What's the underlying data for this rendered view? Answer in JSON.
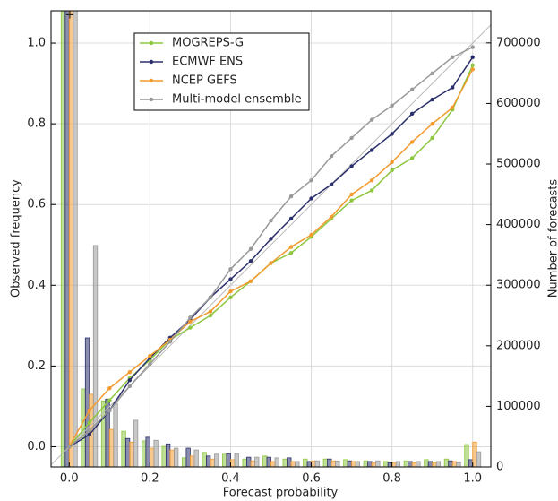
{
  "chart_data": {
    "type": "reliability",
    "xlabel": "Forecast probability",
    "ylabel": "Observed frequency",
    "y2label": "Number of forecasts",
    "annotation": "+",
    "x": [
      0,
      0.05,
      0.1,
      0.15,
      0.2,
      0.25,
      0.3,
      0.35,
      0.4,
      0.45,
      0.5,
      0.55,
      0.6,
      0.65,
      0.7,
      0.75,
      0.8,
      0.85,
      0.9,
      0.95,
      1.0
    ],
    "series": [
      {
        "name": "MOGREPS-G",
        "color": "#8dc63f",
        "values": [
          0,
          0.06,
          0.115,
          0.17,
          0.215,
          0.265,
          0.295,
          0.325,
          0.37,
          0.41,
          0.455,
          0.48,
          0.52,
          0.565,
          0.61,
          0.635,
          0.685,
          0.715,
          0.765,
          0.835,
          0.945
        ],
        "counts": [
          800000,
          128700,
          109000,
          59000,
          43000,
          34000,
          15000,
          24000,
          21000,
          13000,
          18000,
          13000,
          13000,
          13000,
          12000,
          10000,
          9000,
          10000,
          12000,
          13000,
          37000
        ]
      },
      {
        "name": "ECMWF ENS",
        "color": "#2b2f6b",
        "values": [
          0,
          0.03,
          0.09,
          0.165,
          0.22,
          0.27,
          0.315,
          0.37,
          0.415,
          0.46,
          0.515,
          0.565,
          0.615,
          0.65,
          0.695,
          0.735,
          0.775,
          0.825,
          0.86,
          0.89,
          0.965
        ],
        "counts": [
          780000,
          213000,
          112000,
          47000,
          49000,
          38000,
          31000,
          18000,
          22000,
          16000,
          16000,
          15000,
          9000,
          13000,
          10000,
          9000,
          7000,
          9000,
          9000,
          10000,
          12000
        ]
      },
      {
        "name": "NCEP GEFS",
        "color": "#f39a2f",
        "values": [
          0,
          0.09,
          0.145,
          0.185,
          0.225,
          0.265,
          0.31,
          0.335,
          0.385,
          0.41,
          0.455,
          0.495,
          0.525,
          0.57,
          0.625,
          0.66,
          0.705,
          0.755,
          0.8,
          0.84,
          0.935
        ],
        "counts": [
          760000,
          120000,
          62000,
          41000,
          31000,
          28000,
          18000,
          13000,
          12000,
          10000,
          9000,
          9000,
          10000,
          10000,
          9000,
          7000,
          7000,
          7000,
          7000,
          9000,
          41000
        ]
      },
      {
        "name": "Multi-model ensemble",
        "color": "#999999",
        "values": [
          0,
          0.04,
          0.09,
          0.15,
          0.205,
          0.26,
          0.32,
          0.37,
          0.44,
          0.49,
          0.56,
          0.62,
          0.66,
          0.72,
          0.765,
          0.81,
          0.845,
          0.885,
          0.925,
          0.965,
          0.99
        ],
        "counts": [
          760000,
          365500,
          105000,
          77000,
          44000,
          31000,
          28000,
          21000,
          22000,
          16000,
          15000,
          9000,
          10000,
          10000,
          9000,
          10000,
          9000,
          9000,
          9000,
          7000,
          25000
        ]
      }
    ],
    "xlim": [
      -0.045,
      1.045
    ],
    "ylim": [
      -0.05,
      1.08
    ],
    "y2lim": [
      0,
      753000
    ],
    "xticks": [
      {
        "value": 0,
        "label": "0.0"
      },
      {
        "value": 0.2,
        "label": "0.2"
      },
      {
        "value": 0.4,
        "label": "0.4"
      },
      {
        "value": 0.6,
        "label": "0.6"
      },
      {
        "value": 0.8,
        "label": "0.8"
      },
      {
        "value": 1.0,
        "label": "1.0"
      }
    ],
    "yticks": [
      {
        "value": 0,
        "label": "0.0"
      },
      {
        "value": 0.2,
        "label": "0.2"
      },
      {
        "value": 0.4,
        "label": "0.4"
      },
      {
        "value": 0.6,
        "label": "0.6"
      },
      {
        "value": 0.8,
        "label": "0.8"
      },
      {
        "value": 1.0,
        "label": "1.0"
      }
    ],
    "y2ticks": [
      0,
      100000,
      200000,
      300000,
      400000,
      500000,
      600000,
      700000
    ],
    "grid": true,
    "diagonal": true,
    "legend": "upper left"
  }
}
